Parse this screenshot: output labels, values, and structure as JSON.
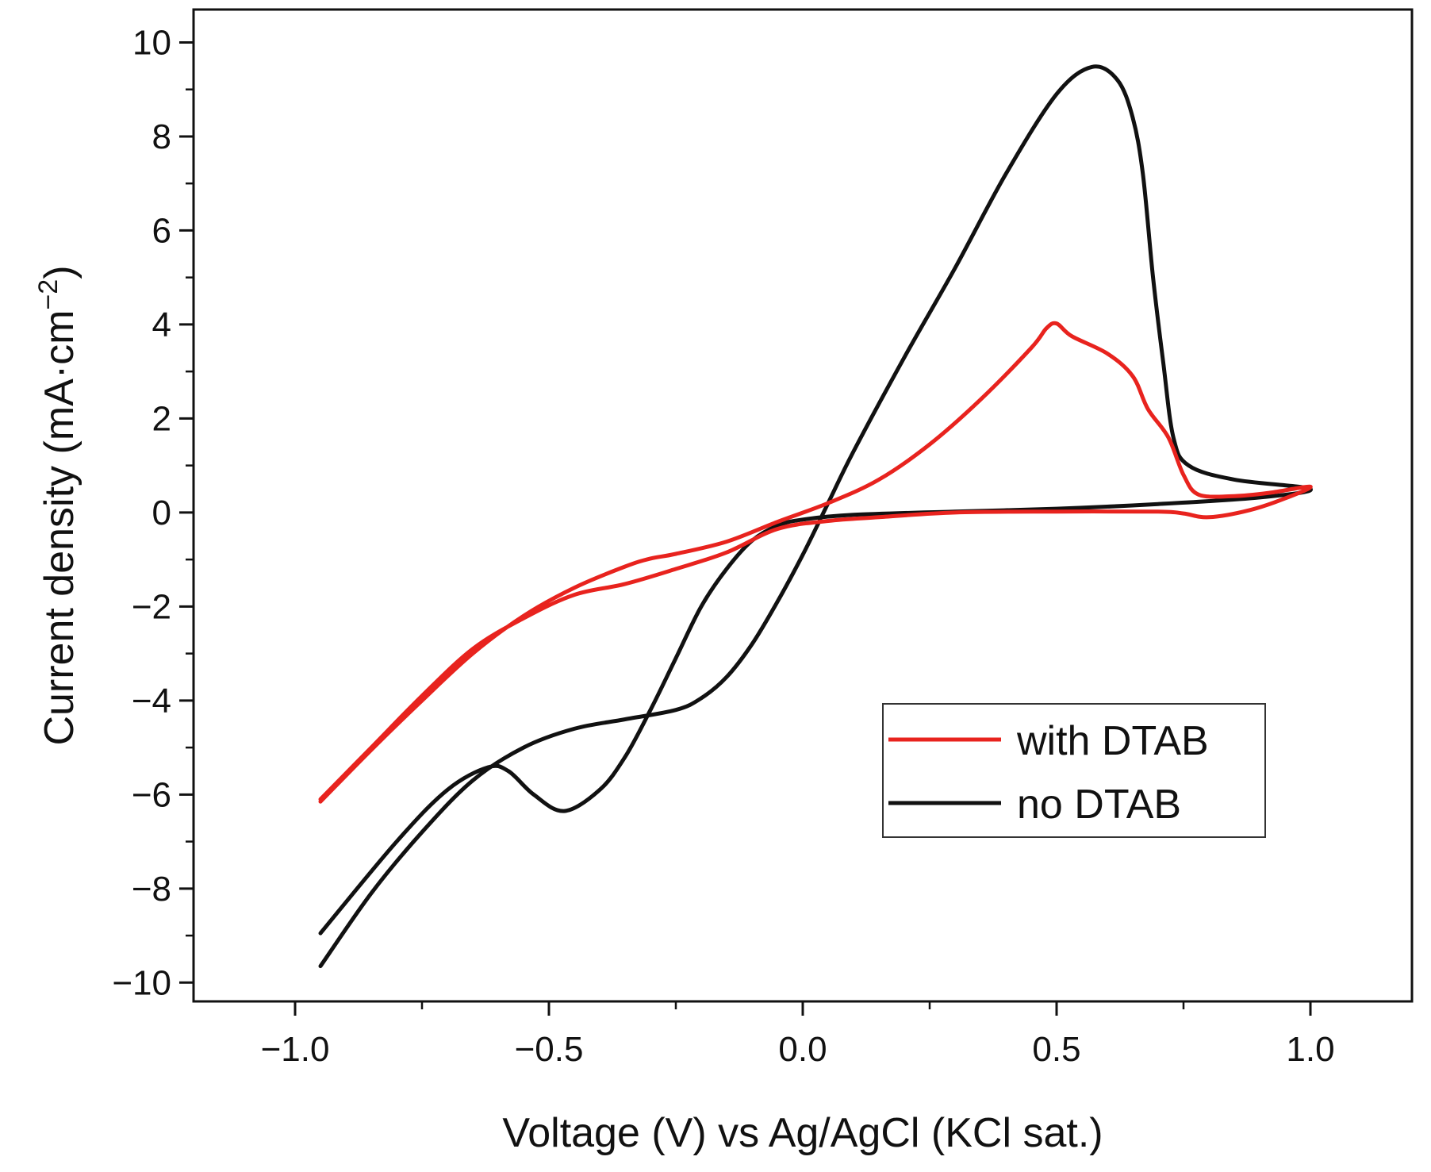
{
  "chart_data": {
    "type": "line",
    "title": "",
    "xlabel": "Voltage (V) vs Ag/AgCl (KCl sat.)",
    "ylabel": {
      "main": "Current density (mA·cm",
      "sup": "−2",
      "close": ")"
    },
    "xlim": [
      -1.2,
      1.2
    ],
    "ylim": [
      -10.4,
      10.7
    ],
    "x_ticks": [
      {
        "value": -1.0,
        "label": "−1.0"
      },
      {
        "value": -0.5,
        "label": "−0.5"
      },
      {
        "value": 0.0,
        "label": "0.0"
      },
      {
        "value": 0.5,
        "label": "0.5"
      },
      {
        "value": 1.0,
        "label": "1.0"
      }
    ],
    "x_minor_ticks": [
      -0.75,
      -0.25,
      0.25,
      0.75
    ],
    "y_ticks": [
      {
        "value": -10,
        "label": "−10"
      },
      {
        "value": -8,
        "label": "−8"
      },
      {
        "value": -6,
        "label": "−6"
      },
      {
        "value": -4,
        "label": "−4"
      },
      {
        "value": -2,
        "label": "−2"
      },
      {
        "value": 0,
        "label": "0"
      },
      {
        "value": 2,
        "label": "2"
      },
      {
        "value": 4,
        "label": "4"
      },
      {
        "value": 6,
        "label": "6"
      },
      {
        "value": 8,
        "label": "8"
      },
      {
        "value": 10,
        "label": "10"
      }
    ],
    "y_minor_ticks": [
      -9,
      -7,
      -5,
      -3,
      -1,
      1,
      3,
      5,
      7,
      9
    ],
    "grid": false,
    "legend_position": "bottom-right",
    "series": [
      {
        "name": "with DTAB",
        "color": "#e8231e",
        "points": [
          [
            -0.95,
            -6.15
          ],
          [
            -0.85,
            -5.05
          ],
          [
            -0.75,
            -4.0
          ],
          [
            -0.65,
            -3.0
          ],
          [
            -0.55,
            -2.2
          ],
          [
            -0.45,
            -1.6
          ],
          [
            -0.35,
            -1.15
          ],
          [
            -0.3,
            -0.98
          ],
          [
            -0.25,
            -0.88
          ],
          [
            -0.15,
            -0.62
          ],
          [
            -0.05,
            -0.2
          ],
          [
            0.05,
            0.2
          ],
          [
            0.15,
            0.7
          ],
          [
            0.25,
            1.45
          ],
          [
            0.35,
            2.4
          ],
          [
            0.45,
            3.5
          ],
          [
            0.48,
            3.92
          ],
          [
            0.5,
            4.02
          ],
          [
            0.53,
            3.75
          ],
          [
            0.6,
            3.38
          ],
          [
            0.65,
            2.9
          ],
          [
            0.68,
            2.2
          ],
          [
            0.72,
            1.6
          ],
          [
            0.75,
            0.8
          ],
          [
            0.78,
            0.38
          ],
          [
            0.85,
            0.35
          ],
          [
            0.92,
            0.42
          ],
          [
            1.0,
            0.55
          ],
          [
            0.95,
            0.3
          ],
          [
            0.88,
            0.05
          ],
          [
            0.8,
            -0.1
          ],
          [
            0.75,
            -0.02
          ],
          [
            0.7,
            0.02
          ],
          [
            0.5,
            0.02
          ],
          [
            0.3,
            0.0
          ],
          [
            0.15,
            -0.1
          ],
          [
            0.05,
            -0.18
          ],
          [
            -0.05,
            -0.35
          ],
          [
            -0.15,
            -0.85
          ],
          [
            -0.25,
            -1.2
          ],
          [
            -0.35,
            -1.52
          ],
          [
            -0.45,
            -1.75
          ],
          [
            -0.55,
            -2.25
          ],
          [
            -0.65,
            -2.9
          ],
          [
            -0.75,
            -3.9
          ],
          [
            -0.85,
            -5.0
          ],
          [
            -0.95,
            -6.1
          ]
        ]
      },
      {
        "name": "no DTAB",
        "color": "#111111",
        "points": [
          [
            -0.95,
            -9.65
          ],
          [
            -0.85,
            -8.1
          ],
          [
            -0.75,
            -6.8
          ],
          [
            -0.65,
            -5.7
          ],
          [
            -0.55,
            -5.0
          ],
          [
            -0.45,
            -4.6
          ],
          [
            -0.35,
            -4.4
          ],
          [
            -0.25,
            -4.2
          ],
          [
            -0.2,
            -3.95
          ],
          [
            -0.15,
            -3.5
          ],
          [
            -0.1,
            -2.8
          ],
          [
            -0.05,
            -1.9
          ],
          [
            0.0,
            -0.9
          ],
          [
            0.05,
            0.2
          ],
          [
            0.1,
            1.3
          ],
          [
            0.2,
            3.3
          ],
          [
            0.3,
            5.2
          ],
          [
            0.4,
            7.2
          ],
          [
            0.5,
            8.9
          ],
          [
            0.57,
            9.48
          ],
          [
            0.62,
            9.2
          ],
          [
            0.65,
            8.4
          ],
          [
            0.67,
            7.2
          ],
          [
            0.69,
            5.0
          ],
          [
            0.71,
            3.2
          ],
          [
            0.73,
            1.6
          ],
          [
            0.76,
            1.0
          ],
          [
            0.85,
            0.7
          ],
          [
            1.0,
            0.5
          ],
          [
            0.9,
            0.32
          ],
          [
            0.7,
            0.18
          ],
          [
            0.5,
            0.08
          ],
          [
            0.3,
            0.02
          ],
          [
            0.1,
            -0.05
          ],
          [
            0.0,
            -0.15
          ],
          [
            -0.05,
            -0.28
          ],
          [
            -0.1,
            -0.6
          ],
          [
            -0.15,
            -1.2
          ],
          [
            -0.2,
            -2.0
          ],
          [
            -0.25,
            -3.1
          ],
          [
            -0.3,
            -4.2
          ],
          [
            -0.35,
            -5.2
          ],
          [
            -0.4,
            -5.9
          ],
          [
            -0.47,
            -6.35
          ],
          [
            -0.53,
            -6.0
          ],
          [
            -0.58,
            -5.5
          ],
          [
            -0.62,
            -5.42
          ],
          [
            -0.7,
            -5.9
          ],
          [
            -0.8,
            -7.0
          ],
          [
            -0.95,
            -8.95
          ]
        ]
      }
    ]
  }
}
